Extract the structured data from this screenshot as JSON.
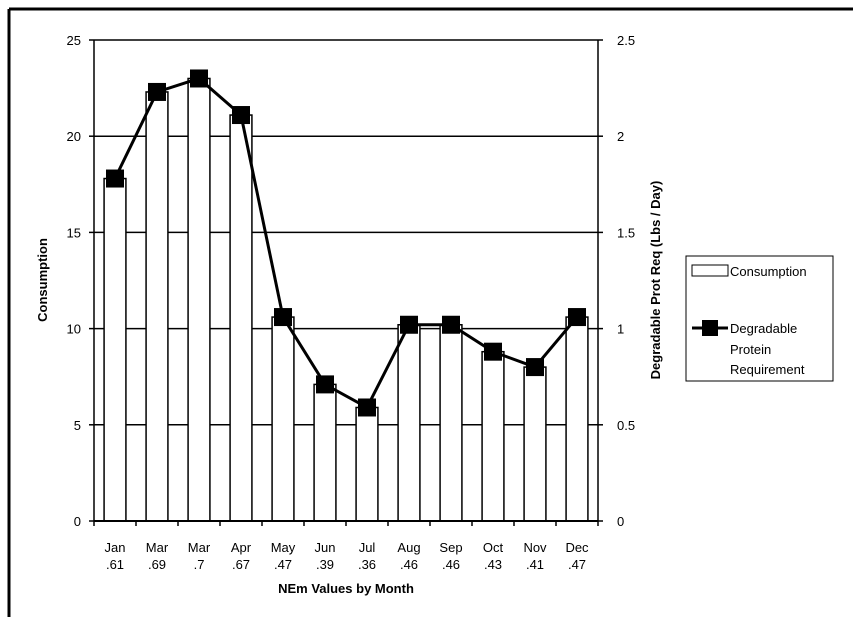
{
  "chart_data": {
    "type": "bar",
    "categories": [
      [
        "Jan",
        ".61"
      ],
      [
        "Mar",
        ".69"
      ],
      [
        "Mar",
        ".7"
      ],
      [
        "Apr",
        ".67"
      ],
      [
        "May",
        ".47"
      ],
      [
        "Jun",
        ".39"
      ],
      [
        "Jul",
        ".36"
      ],
      [
        "Aug",
        ".46"
      ],
      [
        "Sep",
        ".46"
      ],
      [
        "Oct",
        ".43"
      ],
      [
        "Nov",
        ".41"
      ],
      [
        "Dec",
        ".47"
      ]
    ],
    "series": [
      {
        "name": "Consumption",
        "type": "bar",
        "axis": "left",
        "values": [
          17.8,
          22.3,
          23.0,
          21.1,
          10.6,
          7.1,
          5.9,
          10.2,
          10.2,
          8.8,
          8.0,
          10.6
        ]
      },
      {
        "name": "Degradable Protein Requirement",
        "type": "line",
        "axis": "right",
        "values": [
          1.78,
          2.23,
          2.3,
          2.11,
          1.06,
          0.71,
          0.59,
          1.02,
          1.02,
          0.88,
          0.8,
          1.06
        ]
      }
    ],
    "xlabel": "NEm Values by Month",
    "ylabel": "Consumption",
    "y2label": "Degradable Prot Req (Lbs / Day)",
    "ylim": [
      0,
      25
    ],
    "y2lim": [
      0,
      2.5
    ],
    "yticks": [
      "0",
      "5",
      "10",
      "15",
      "20",
      "25"
    ],
    "y2ticks": [
      "0",
      "0.5",
      "1",
      "1.5",
      "2",
      "2.5"
    ],
    "grid": true,
    "legend_position": "right",
    "legend": [
      {
        "lines": [
          "Consumption"
        ]
      },
      {
        "lines": [
          "Degradable",
          "Protein",
          "Requirement"
        ]
      }
    ],
    "colors": {
      "bar_fill": "#ffffff",
      "line": "#000000",
      "marker": "#000000",
      "grid": "#000000"
    }
  }
}
